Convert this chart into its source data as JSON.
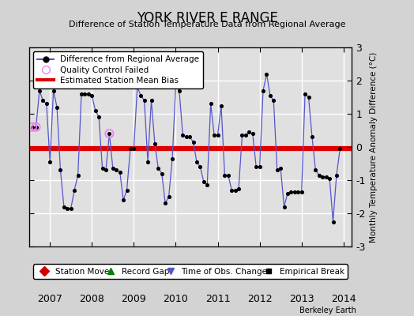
{
  "title": "YORK RIVER E RANGE",
  "subtitle": "Difference of Station Temperature Data from Regional Average",
  "ylabel": "Monthly Temperature Anomaly Difference (°C)",
  "bias_value": -0.05,
  "ylim": [
    -3,
    3
  ],
  "xlim": [
    2006.5,
    2014.2
  ],
  "bg_color": "#d3d3d3",
  "plot_bg_color": "#e0e0e0",
  "grid_color": "#ffffff",
  "line_color": "#5555cc",
  "bias_color": "#dd0000",
  "qc_fail_times": [
    2006.583,
    2006.667,
    2008.417
  ],
  "qc_fail_values": [
    0.6,
    0.6,
    0.4
  ],
  "data_times": [
    2006.583,
    2006.667,
    2006.75,
    2006.833,
    2006.917,
    2007.0,
    2007.083,
    2007.167,
    2007.25,
    2007.333,
    2007.417,
    2007.5,
    2007.583,
    2007.667,
    2007.75,
    2007.833,
    2007.917,
    2008.0,
    2008.083,
    2008.167,
    2008.25,
    2008.333,
    2008.417,
    2008.5,
    2008.583,
    2008.667,
    2008.75,
    2008.833,
    2008.917,
    2009.0,
    2009.083,
    2009.167,
    2009.25,
    2009.333,
    2009.417,
    2009.5,
    2009.583,
    2009.667,
    2009.75,
    2009.833,
    2009.917,
    2010.0,
    2010.083,
    2010.167,
    2010.25,
    2010.333,
    2010.417,
    2010.5,
    2010.583,
    2010.667,
    2010.75,
    2010.833,
    2010.917,
    2011.0,
    2011.083,
    2011.167,
    2011.25,
    2011.333,
    2011.417,
    2011.5,
    2011.583,
    2011.667,
    2011.75,
    2011.833,
    2011.917,
    2012.0,
    2012.083,
    2012.167,
    2012.25,
    2012.333,
    2012.417,
    2012.5,
    2012.583,
    2012.667,
    2012.75,
    2012.833,
    2012.917,
    2013.0,
    2013.083,
    2013.167,
    2013.25,
    2013.333,
    2013.417,
    2013.5,
    2013.583,
    2013.667,
    2013.75,
    2013.833,
    2013.917
  ],
  "data_values": [
    0.6,
    0.6,
    1.7,
    1.4,
    1.3,
    -0.45,
    1.7,
    1.2,
    -0.7,
    -1.8,
    -1.85,
    -1.85,
    -1.3,
    -0.85,
    1.6,
    1.6,
    1.6,
    1.55,
    1.1,
    0.9,
    -0.65,
    -0.7,
    0.4,
    -0.65,
    -0.7,
    -0.75,
    -1.6,
    -1.3,
    -0.05,
    -0.05,
    1.8,
    1.55,
    1.4,
    -0.45,
    1.4,
    0.1,
    -0.65,
    -0.8,
    -1.7,
    -1.5,
    -0.35,
    1.85,
    1.7,
    0.35,
    0.3,
    0.3,
    0.15,
    -0.45,
    -0.6,
    -1.05,
    -1.15,
    1.3,
    0.35,
    0.35,
    1.25,
    -0.85,
    -0.85,
    -1.3,
    -1.3,
    -1.25,
    0.35,
    0.35,
    0.45,
    0.4,
    -0.6,
    -0.6,
    1.7,
    2.2,
    1.55,
    1.4,
    -0.7,
    -0.65,
    -1.8,
    -1.4,
    -1.35,
    -1.35,
    -1.35,
    -1.35,
    1.6,
    1.5,
    0.3,
    -0.7,
    -0.85,
    -0.9,
    -0.9,
    -0.95,
    -2.25,
    -0.85,
    -0.05
  ],
  "xticks": [
    2007,
    2008,
    2009,
    2010,
    2011,
    2012,
    2013,
    2014
  ],
  "yticks": [
    -3,
    -2,
    -1,
    0,
    1,
    2,
    3
  ],
  "watermark": "Berkeley Earth"
}
